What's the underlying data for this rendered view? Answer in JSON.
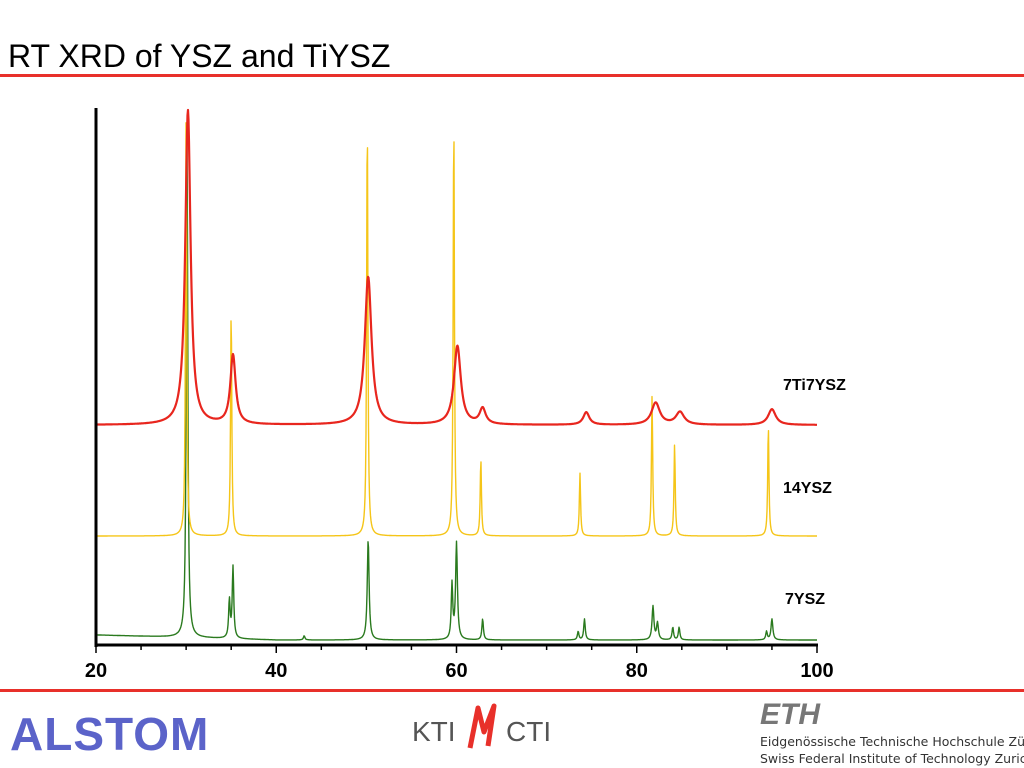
{
  "slide": {
    "title": "RT XRD of YSZ and TiYSZ",
    "rule_color": "#e8302a"
  },
  "chart_data": {
    "type": "line",
    "title": "",
    "xlabel": "",
    "ylabel": "",
    "xlim": [
      20,
      100
    ],
    "xticks": [
      20,
      40,
      60,
      80,
      100
    ],
    "grid": false,
    "y_axis_ticks": false,
    "series": [
      {
        "name": "7Ti7YSZ",
        "color": "#e8261e",
        "baseline": 0.2,
        "peaks": [
          {
            "x": 30.2,
            "height": 1.0,
            "width": 0.35
          },
          {
            "x": 35.2,
            "height": 0.22,
            "width": 0.35
          },
          {
            "x": 50.2,
            "height": 0.47,
            "width": 0.45
          },
          {
            "x": 60.1,
            "height": 0.25,
            "width": 0.45
          },
          {
            "x": 62.9,
            "height": 0.05,
            "width": 0.4
          },
          {
            "x": 74.4,
            "height": 0.04,
            "width": 0.4
          },
          {
            "x": 82.1,
            "height": 0.07,
            "width": 0.55
          },
          {
            "x": 84.8,
            "height": 0.04,
            "width": 0.55
          },
          {
            "x": 95.0,
            "height": 0.05,
            "width": 0.5
          }
        ]
      },
      {
        "name": "14YSZ",
        "color": "#f5c518",
        "baseline": -0.03,
        "peaks": [
          {
            "x": 30.0,
            "height": 1.15,
            "width": 0.08
          },
          {
            "x": 35.0,
            "height": 0.62,
            "width": 0.08
          },
          {
            "x": 50.1,
            "height": 1.15,
            "width": 0.08
          },
          {
            "x": 59.7,
            "height": 1.15,
            "width": 0.08
          },
          {
            "x": 62.7,
            "height": 0.21,
            "width": 0.08
          },
          {
            "x": 73.7,
            "height": 0.17,
            "width": 0.08
          },
          {
            "x": 81.7,
            "height": 0.38,
            "width": 0.08
          },
          {
            "x": 84.2,
            "height": 0.25,
            "width": 0.08
          },
          {
            "x": 94.6,
            "height": 0.3,
            "width": 0.08
          }
        ]
      },
      {
        "name": "7YSZ",
        "color": "#2a7a1e",
        "baseline": -0.25,
        "peaks": [
          {
            "x": 30.1,
            "height": 1.2,
            "width": 0.1
          },
          {
            "x": 34.8,
            "height": 0.09,
            "width": 0.1
          },
          {
            "x": 35.2,
            "height": 0.17,
            "width": 0.1
          },
          {
            "x": 43.1,
            "height": 0.01,
            "width": 0.1
          },
          {
            "x": 50.2,
            "height": 0.24,
            "width": 0.12
          },
          {
            "x": 59.5,
            "height": 0.13,
            "width": 0.1
          },
          {
            "x": 60.0,
            "height": 0.23,
            "width": 0.12
          },
          {
            "x": 62.9,
            "height": 0.05,
            "width": 0.1
          },
          {
            "x": 73.5,
            "height": 0.02,
            "width": 0.1
          },
          {
            "x": 74.2,
            "height": 0.05,
            "width": 0.1
          },
          {
            "x": 81.8,
            "height": 0.08,
            "width": 0.12
          },
          {
            "x": 82.3,
            "height": 0.04,
            "width": 0.12
          },
          {
            "x": 84.0,
            "height": 0.03,
            "width": 0.1
          },
          {
            "x": 84.7,
            "height": 0.03,
            "width": 0.1
          },
          {
            "x": 94.4,
            "height": 0.02,
            "width": 0.1
          },
          {
            "x": 95.0,
            "height": 0.05,
            "width": 0.12
          }
        ]
      }
    ],
    "series_labels": [
      "7Ti7YSZ",
      "14YSZ",
      "7YSZ"
    ]
  },
  "footer": {
    "alstom_logo": "ALSTOM",
    "kti_logo_left": "KTI",
    "kti_logo_right": "CTI",
    "eth_logo": "ETH",
    "eth_line_1": "Eidgenössische Technische Hochschule Zürich",
    "eth_line_2": "Swiss Federal Institute of Technology Zurich",
    "alstom_color": "#5b63c9"
  }
}
